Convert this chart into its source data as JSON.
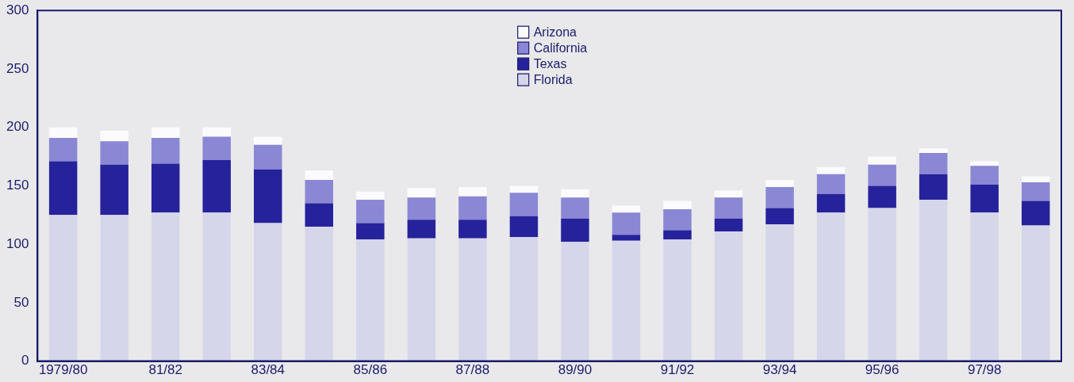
{
  "chart_data": {
    "type": "bar",
    "stacked": true,
    "categories": [
      "1979/80",
      null,
      "81/82",
      null,
      "83/84",
      null,
      "85/86",
      null,
      "87/88",
      null,
      "89/90",
      null,
      "91/92",
      null,
      "93/94",
      null,
      "95/96",
      null,
      "97/98",
      null
    ],
    "series": [
      {
        "name": "Florida",
        "color": "#d6d6ea",
        "values": [
          125,
          125,
          127,
          127,
          118,
          115,
          104,
          105,
          105,
          106,
          102,
          103,
          104,
          111,
          117,
          127,
          131,
          138,
          127,
          116
        ]
      },
      {
        "name": "Texas",
        "color": "#26229c",
        "values": [
          46,
          43,
          42,
          45,
          46,
          20,
          14,
          16,
          16,
          18,
          20,
          5,
          8,
          11,
          14,
          16,
          19,
          22,
          24,
          21
        ]
      },
      {
        "name": "California",
        "color": "#8a88d4",
        "values": [
          20,
          20,
          22,
          20,
          21,
          20,
          20,
          19,
          20,
          20,
          18,
          19,
          18,
          18,
          18,
          17,
          18,
          18,
          16,
          16
        ]
      },
      {
        "name": "Arizona",
        "color": "#fbfbfd",
        "values": [
          9,
          9,
          9,
          8,
          7,
          8,
          7,
          8,
          8,
          6,
          7,
          6,
          7,
          6,
          6,
          6,
          7,
          4,
          4,
          5
        ]
      }
    ],
    "ylim": [
      0,
      300
    ],
    "yticks": [
      0,
      50,
      100,
      150,
      200,
      250,
      300
    ],
    "grid": false,
    "legend": "top"
  }
}
